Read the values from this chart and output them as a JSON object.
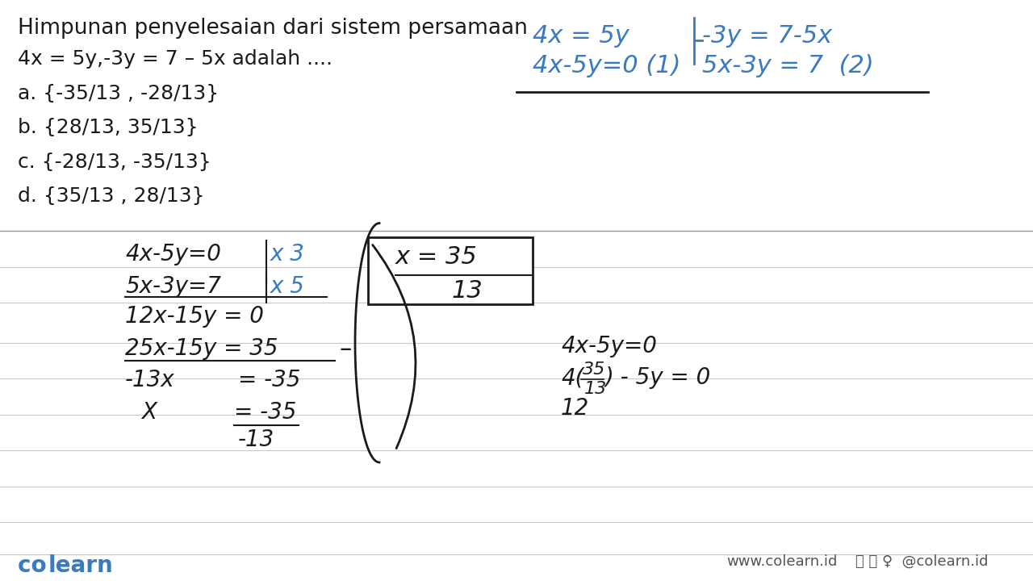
{
  "bg_color": "#f5f5f5",
  "line_color": "#cccccc",
  "black": "#1a1a1a",
  "blue": "#3a7abf",
  "title": "Himpunan penyelesaian dari sistem persamaan",
  "question": "4x = 5y,-3y = 7 – 5x adalah ....",
  "option_a": "a. {-35/13 , -28/13}",
  "option_b": "b. {28/13, 35/13}",
  "option_c": "c. {-28/13, -35/13}",
  "option_d": "d. {35/13 , 28/13}",
  "colearn_text": "co learn",
  "footer_text": "www.colearn.id",
  "footer_social": "@colearn.id"
}
